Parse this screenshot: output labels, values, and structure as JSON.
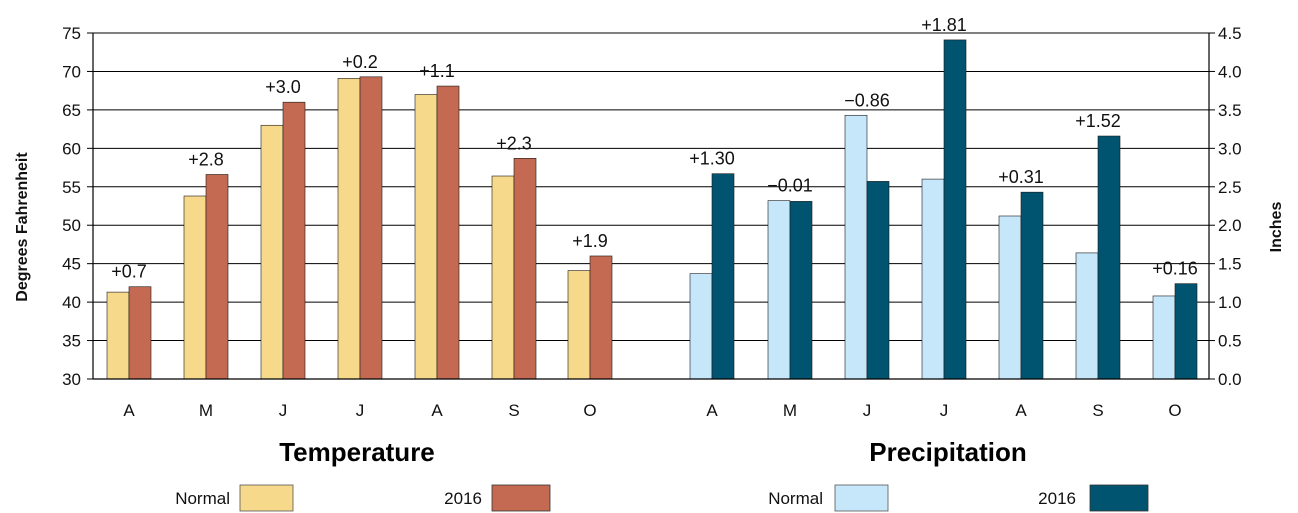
{
  "chart_data": [
    {
      "type": "bar",
      "title": "Temperature",
      "ylabel": "Degrees Fahrenheit",
      "ylim": [
        30,
        75
      ],
      "yticks": [
        30,
        35,
        40,
        45,
        50,
        55,
        60,
        65,
        70,
        75
      ],
      "y_axis_side": "left",
      "grid": true,
      "categories": [
        "A",
        "M",
        "J",
        "J",
        "A",
        "S",
        "O"
      ],
      "series": [
        {
          "name": "Normal",
          "color": "#F6D98A",
          "values": [
            41.3,
            53.8,
            63.0,
            69.1,
            67.0,
            56.4,
            44.1
          ]
        },
        {
          "name": "2016",
          "color": "#C56A52",
          "values": [
            42.0,
            56.6,
            66.0,
            69.3,
            68.1,
            58.7,
            46.0
          ]
        }
      ],
      "annotations": [
        "+0.7",
        "+2.8",
        "+3.0",
        "+0.2",
        "+1.1",
        "+2.3",
        "+1.9"
      ],
      "legend_position": "bottom"
    },
    {
      "type": "bar",
      "title": "Precipitation",
      "ylabel": "Inches",
      "ylim": [
        0.0,
        4.5
      ],
      "yticks": [
        "0.0",
        "0.5",
        "1.0",
        "1.5",
        "2.0",
        "2.5",
        "3.0",
        "3.5",
        "4.0",
        "4.5"
      ],
      "y_axis_side": "right",
      "grid": true,
      "categories": [
        "A",
        "M",
        "J",
        "J",
        "A",
        "S",
        "O"
      ],
      "series": [
        {
          "name": "Normal",
          "color": "#C6E6FA",
          "values": [
            1.37,
            2.32,
            3.43,
            2.6,
            2.12,
            1.64,
            1.08
          ]
        },
        {
          "name": "2016",
          "color": "#005470",
          "values": [
            2.67,
            2.31,
            2.57,
            4.41,
            2.43,
            3.16,
            1.24
          ]
        }
      ],
      "annotations": [
        "+1.30",
        "−0.01",
        "−0.86",
        "+1.81",
        "+0.31",
        "+1.52",
        "+0.16"
      ],
      "legend_position": "bottom"
    }
  ]
}
